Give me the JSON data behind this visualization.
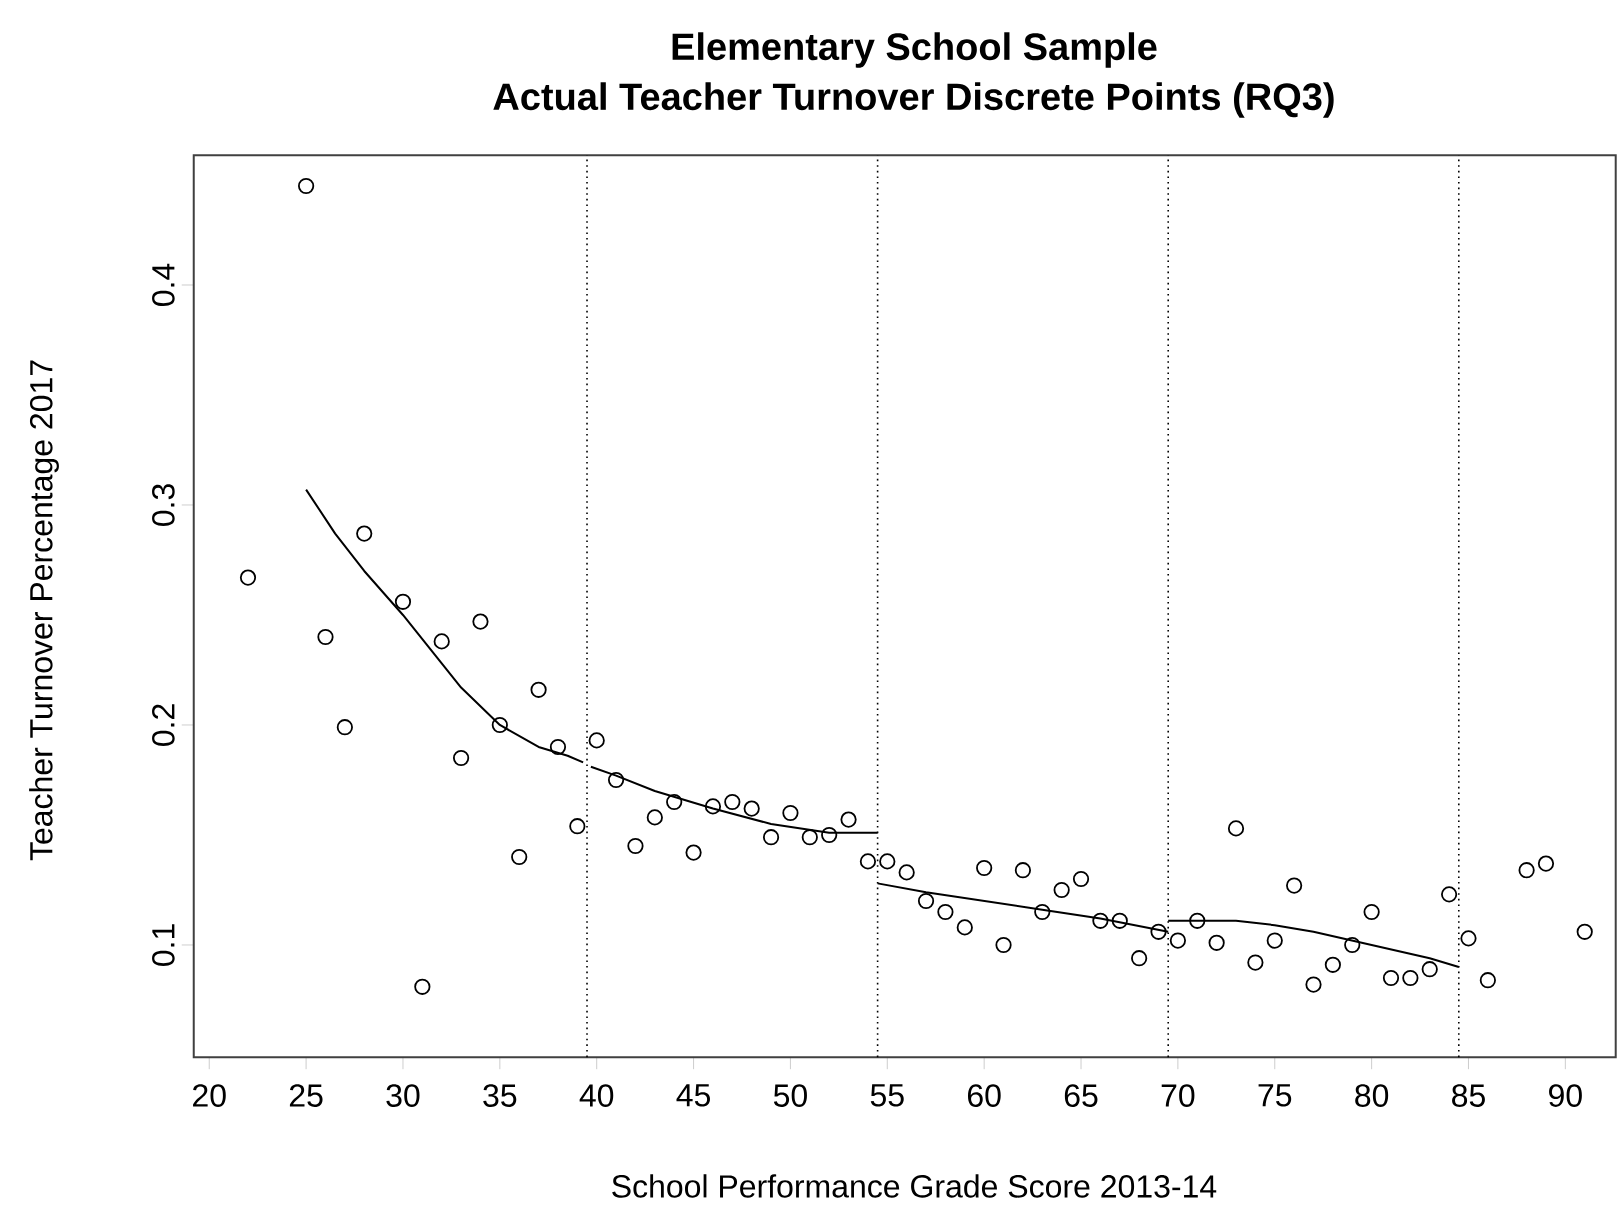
{
  "chart_data": {
    "type": "scatter",
    "title": "Elementary School Sample",
    "subtitle": "Actual Teacher Turnover Discrete Points (RQ3)",
    "xlabel": "School Performance Grade Score 2013-14",
    "ylabel": "Teacher Turnover Percentage 2017",
    "xlim": [
      19.2,
      92.6
    ],
    "ylim": [
      0.049,
      0.459
    ],
    "xticks": [
      20,
      25,
      30,
      35,
      40,
      45,
      50,
      55,
      60,
      65,
      70,
      75,
      80,
      85,
      90
    ],
    "yticks": [
      0.1,
      0.2,
      0.3,
      0.4
    ],
    "grid": false,
    "marker": "circle",
    "series": [
      {
        "color": "#000000",
        "x": [
          22,
          25,
          26,
          27,
          28,
          30,
          31,
          32,
          33,
          34,
          35,
          36,
          37,
          38,
          39,
          40,
          41,
          42,
          43,
          44,
          45,
          46,
          47,
          48,
          49,
          50,
          51,
          52,
          53,
          54,
          55,
          56,
          57,
          58,
          59,
          60,
          61,
          62,
          63,
          64,
          65,
          66,
          67,
          68,
          69,
          70,
          71,
          72,
          73,
          74,
          75,
          76,
          77,
          78,
          79,
          80,
          81,
          82,
          83,
          84,
          85,
          86,
          88,
          89,
          91
        ],
        "values": [
          0.267,
          0.445,
          0.24,
          0.199,
          0.287,
          0.256,
          0.081,
          0.238,
          0.185,
          0.247,
          0.2,
          0.14,
          0.216,
          0.19,
          0.154,
          0.193,
          0.175,
          0.145,
          0.158,
          0.165,
          0.142,
          0.163,
          0.165,
          0.162,
          0.149,
          0.16,
          0.149,
          0.15,
          0.157,
          0.138,
          0.138,
          0.133,
          0.12,
          0.115,
          0.108,
          0.135,
          0.1,
          0.134,
          0.115,
          0.125,
          0.13,
          0.111,
          0.111,
          0.094,
          0.106,
          0.102,
          0.111,
          0.101,
          0.153,
          0.092,
          0.102,
          0.127,
          0.082,
          0.091,
          0.1,
          0.115,
          0.085,
          0.085,
          0.089,
          0.123,
          0.103,
          0.084,
          0.134,
          0.137,
          0.106
        ]
      },
      {
        "type": "line",
        "color": "#000000",
        "marker": "none",
        "x": [
          25,
          26.5,
          28,
          30,
          32,
          33,
          35,
          37,
          38.5,
          39.3
        ],
        "values": [
          0.307,
          0.287,
          0.27,
          0.25,
          0.228,
          0.217,
          0.2,
          0.19,
          0.186,
          0.183
        ]
      },
      {
        "type": "line",
        "color": "#000000",
        "marker": "none",
        "x": [
          39.7,
          41,
          43,
          46,
          49,
          52,
          54.5
        ],
        "values": [
          0.181,
          0.177,
          0.17,
          0.162,
          0.155,
          0.151,
          0.151
        ]
      },
      {
        "type": "line",
        "color": "#000000",
        "marker": "none",
        "x": [
          54.5,
          57,
          60,
          63,
          66,
          69.5
        ],
        "values": [
          0.128,
          0.124,
          0.12,
          0.116,
          0.112,
          0.106
        ]
      },
      {
        "type": "line",
        "color": "#000000",
        "marker": "none",
        "x": [
          69.5,
          71,
          73,
          75,
          77,
          79,
          81,
          83,
          84.5
        ],
        "values": [
          0.111,
          0.111,
          0.111,
          0.109,
          0.106,
          0.102,
          0.098,
          0.094,
          0.09
        ]
      }
    ],
    "ref_lines": [
      {
        "axis": "x",
        "value": 39.5,
        "line_style": "dotted",
        "color": "#000000"
      },
      {
        "axis": "x",
        "value": 54.5,
        "line_style": "dotted",
        "color": "#000000"
      },
      {
        "axis": "x",
        "value": 69.5,
        "line_style": "dotted",
        "color": "#000000"
      },
      {
        "axis": "x",
        "value": 84.5,
        "line_style": "dotted",
        "color": "#000000"
      }
    ]
  }
}
